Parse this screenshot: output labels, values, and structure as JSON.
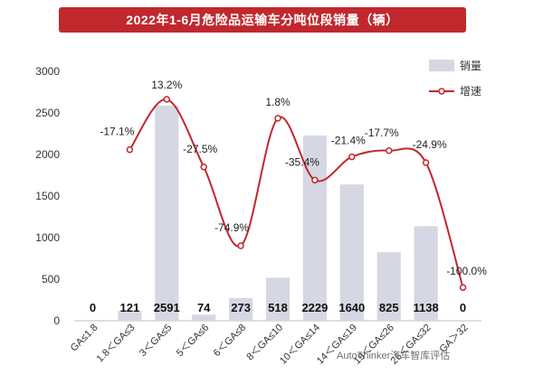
{
  "title": "2022年1-6月危险品运输车分吨位段销量（辆）",
  "watermark": "AutoThinker汽车智库评估",
  "chart_data": {
    "type": "bar+line",
    "categories": [
      "GA≤1.8",
      "1.8＜GA≤3",
      "3＜GA≤5",
      "5＜GA≤6",
      "6＜GA≤8",
      "8＜GA≤10",
      "10＜GA≤14",
      "14＜GA≤19",
      "19＜GA≤26",
      "26＜GA≤32",
      "GA＞32"
    ],
    "series": [
      {
        "name": "销量",
        "type": "bar",
        "axis": "left",
        "color": "#d5d8e3",
        "values": [
          0,
          121,
          2591,
          74,
          273,
          518,
          2229,
          1640,
          825,
          1138,
          0
        ],
        "labels": [
          "0",
          "121",
          "2591",
          "74",
          "273",
          "518",
          "2229",
          "1640",
          "825",
          "1138",
          "0"
        ]
      },
      {
        "name": "增速",
        "type": "line",
        "axis": "right",
        "color": "#c0282d",
        "values": [
          null,
          -17.1,
          13.2,
          -27.5,
          -74.9,
          1.8,
          -35.4,
          -21.4,
          -17.7,
          -24.9,
          -100.0
        ],
        "labels": [
          "",
          "-17.1%",
          "13.2%",
          "-27.5%",
          "-74.9%",
          "1.8%",
          "-35.4%",
          "-21.4%",
          "-17.7%",
          "-24.9%",
          "-100.0%"
        ]
      }
    ],
    "yaxis": {
      "ticks": [
        "0",
        "500",
        "1000",
        "1500",
        "2000",
        "2500",
        "3000"
      ],
      "range": [
        0,
        3000
      ]
    },
    "y2_range": [
      -120,
      30
    ],
    "grid": false,
    "legend_position": "top-right"
  }
}
